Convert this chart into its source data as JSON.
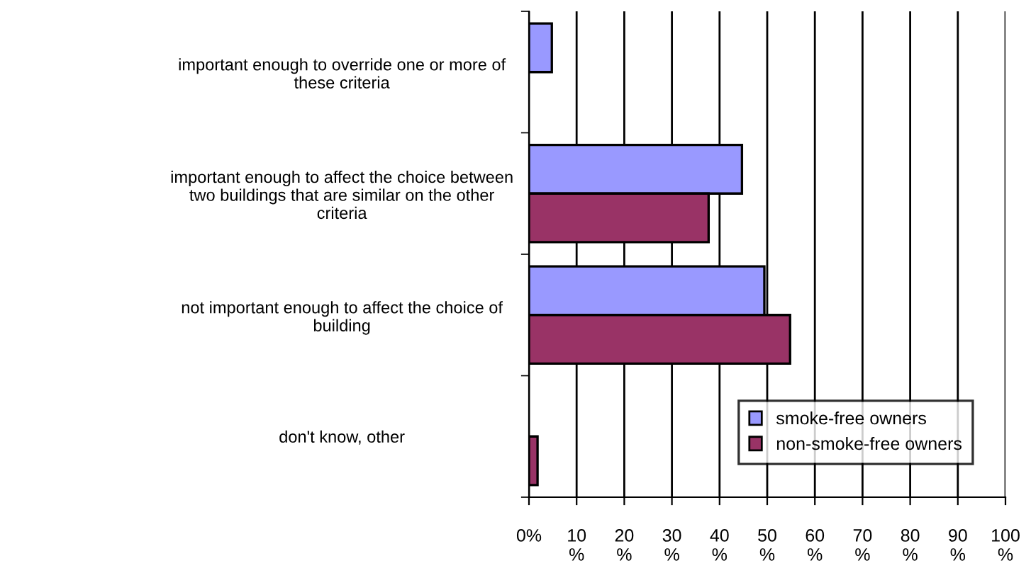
{
  "chart_data": {
    "type": "bar",
    "orientation": "horizontal",
    "categories": [
      "important enough to override one or more of\nthese criteria",
      "important enough to affect the choice between\ntwo buildings that are similar on the other\ncriteria",
      "not important enough to affect the choice of\nbuilding",
      "don't know, other"
    ],
    "series": [
      {
        "name": "smoke-free owners",
        "color": "#9999ff",
        "values": [
          4.8,
          44.7,
          49.4,
          null
        ]
      },
      {
        "name": "non-smoke-free owners",
        "color": "#993366",
        "values": [
          null,
          37.7,
          54.8,
          1.8
        ]
      }
    ],
    "xlim": [
      0,
      100
    ],
    "xticks": [
      {
        "value": 0,
        "label": "0%"
      },
      {
        "value": 10,
        "label": "10\n%"
      },
      {
        "value": 20,
        "label": "20\n%"
      },
      {
        "value": 30,
        "label": "30\n%"
      },
      {
        "value": 40,
        "label": "40\n%"
      },
      {
        "value": 50,
        "label": "50\n%"
      },
      {
        "value": 60,
        "label": "60\n%"
      },
      {
        "value": 70,
        "label": "70\n%"
      },
      {
        "value": 80,
        "label": "80\n%"
      },
      {
        "value": 90,
        "label": "90\n%"
      },
      {
        "value": 100,
        "label": "100\n%"
      }
    ],
    "grid": "x",
    "legend": "bottom right"
  }
}
